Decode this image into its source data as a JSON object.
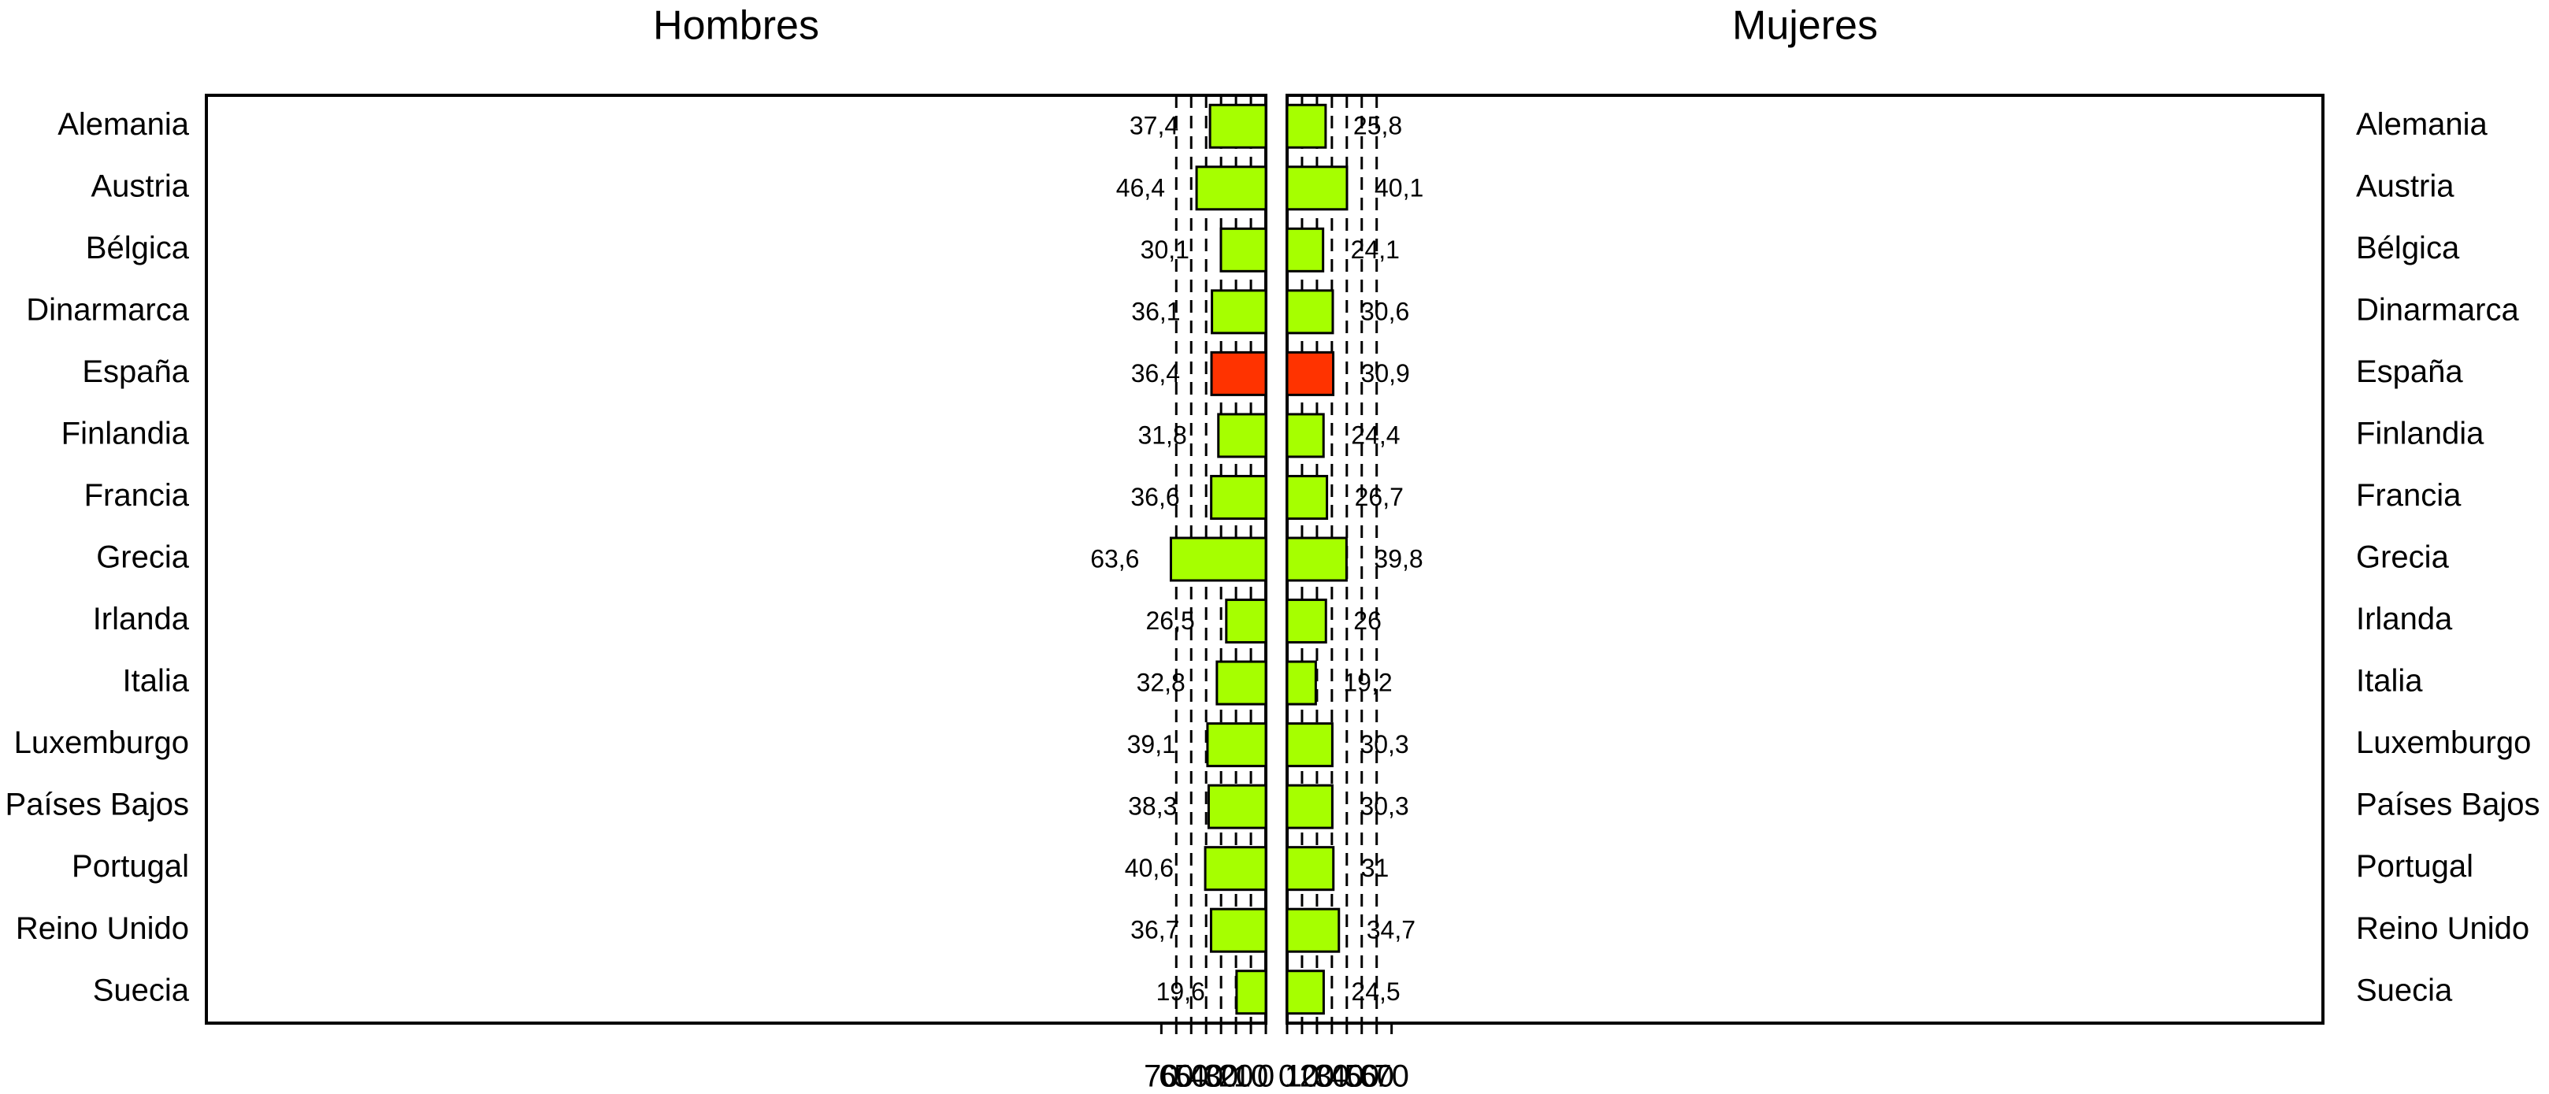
{
  "chart_data": {
    "type": "bar",
    "orientation": "horizontal",
    "layout": "back-to-back",
    "categories": [
      "Alemania",
      "Austria",
      "Bélgica",
      "Dinarmarca",
      "España",
      "Finlandia",
      "Francia",
      "Grecia",
      "Irlanda",
      "Italia",
      "Luxemburgo",
      "Países Bajos",
      "Portugal",
      "Reino Unido",
      "Suecia"
    ],
    "series": [
      {
        "name": "Hombres",
        "values": [
          37.4,
          46.4,
          30.1,
          36.1,
          36.4,
          31.8,
          36.6,
          63.6,
          26.5,
          32.8,
          39.1,
          38.3,
          40.6,
          36.7,
          19.6
        ],
        "labels": [
          "37,4",
          "46,4",
          "30,1",
          "36,1",
          "36,4",
          "31,8",
          "36,6",
          "63,6",
          "26,5",
          "32,8",
          "39,1",
          "38,3",
          "40,6",
          "36,7",
          "19,6"
        ]
      },
      {
        "name": "Mujeres",
        "values": [
          25.8,
          40.1,
          24.1,
          30.6,
          30.9,
          24.4,
          26.7,
          39.8,
          26,
          19.2,
          30.3,
          30.3,
          31,
          34.7,
          24.5
        ],
        "labels": [
          "25,8",
          "40,1",
          "24,1",
          "30,6",
          "30,9",
          "24,4",
          "26,7",
          "39,8",
          "26",
          "19,2",
          "30,3",
          "30,3",
          "31",
          "34,7",
          "24,5"
        ]
      }
    ],
    "highlight_category": "España",
    "colors": {
      "bar": "#a6ff00",
      "highlight": "#ff3300"
    },
    "xlim": [
      0,
      70
    ],
    "ticks": [
      "0",
      "10",
      "20",
      "30",
      "40",
      "50",
      "60",
      "70"
    ],
    "grid": "vertical dashed lines at 10–60",
    "legend": "none"
  }
}
